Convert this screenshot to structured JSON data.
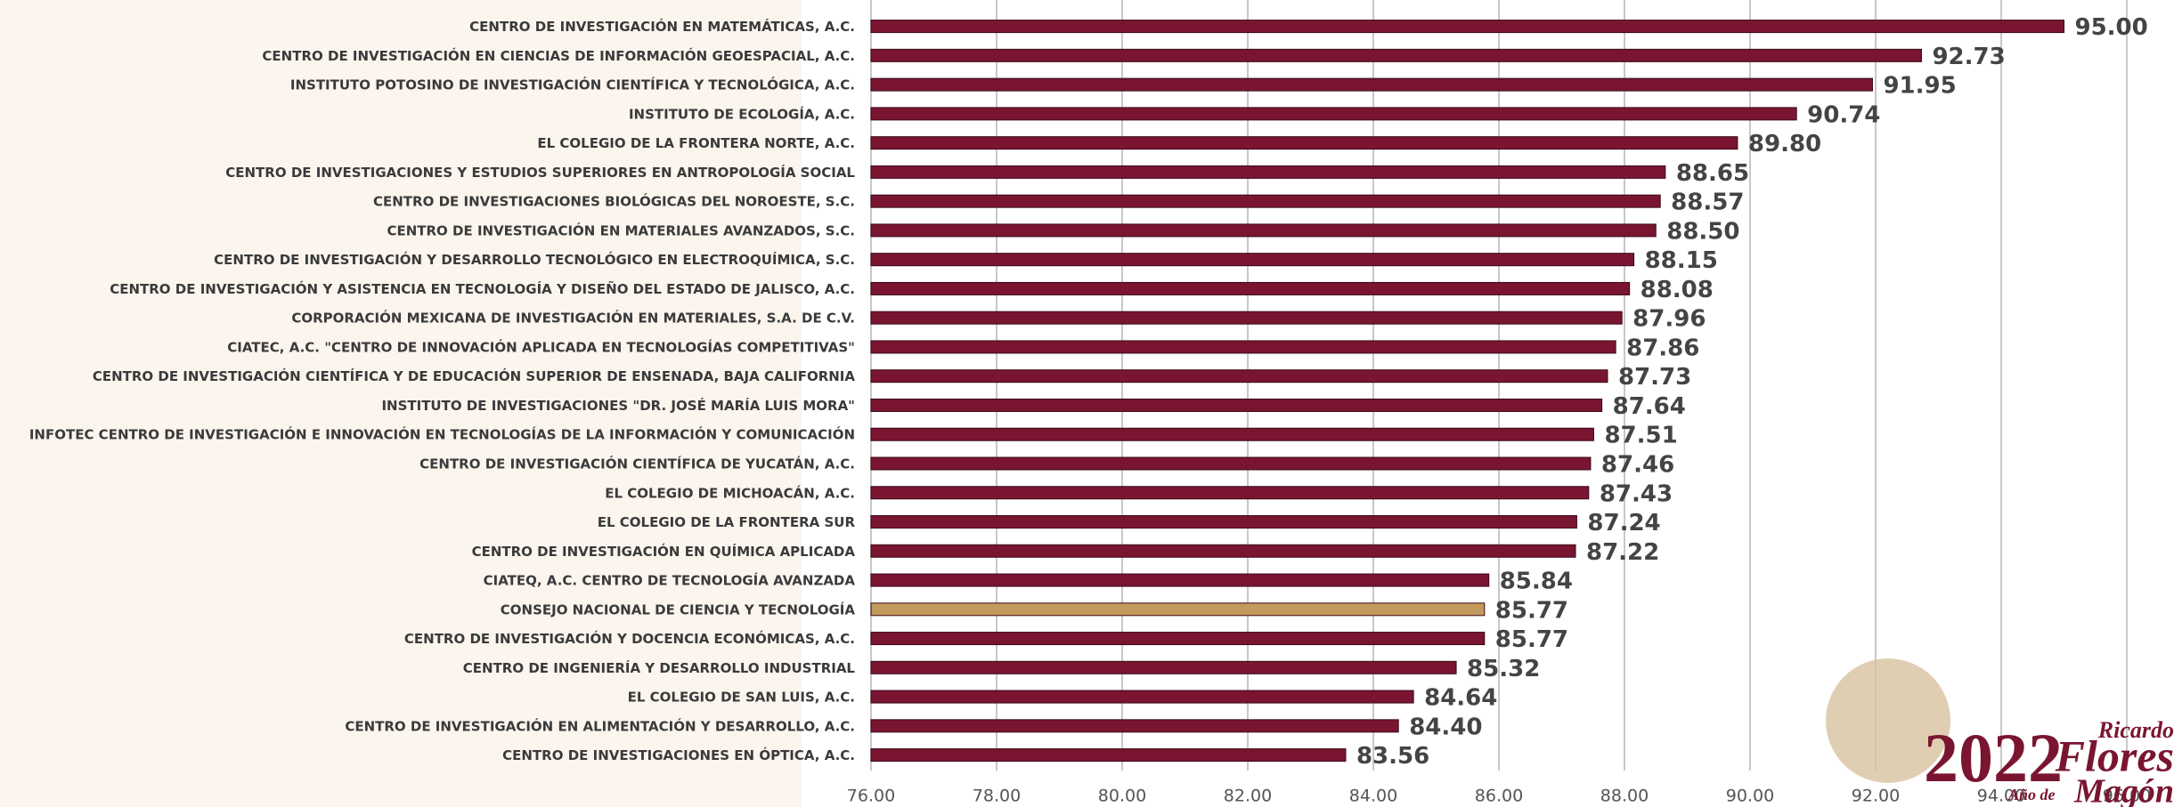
{
  "chart_data": {
    "type": "bar",
    "orientation": "horizontal",
    "categories": [
      "CENTRO DE INVESTIGACIÓN EN MATEMÁTICAS, A.C.",
      "CENTRO DE INVESTIGACIÓN EN CIENCIAS DE INFORMACIÓN GEOESPACIAL, A.C.",
      "INSTITUTO POTOSINO DE INVESTIGACIÓN CIENTÍFICA Y TECNOLÓGICA, A.C.",
      "INSTITUTO DE ECOLOGÍA, A.C.",
      "EL COLEGIO DE LA FRONTERA NORTE, A.C.",
      "CENTRO DE INVESTIGACIONES Y ESTUDIOS SUPERIORES EN ANTROPOLOGÍA SOCIAL",
      "CENTRO DE INVESTIGACIONES BIOLÓGICAS DEL NOROESTE, S.C.",
      "CENTRO DE INVESTIGACIÓN EN MATERIALES AVANZADOS, S.C.",
      "CENTRO DE INVESTIGACIÓN Y DESARROLLO TECNOLÓGICO EN ELECTROQUÍMICA, S.C.",
      "CENTRO DE INVESTIGACIÓN Y ASISTENCIA EN TECNOLOGÍA Y DISEÑO DEL ESTADO DE JALISCO, A.C.",
      "CORPORACIÓN MEXICANA DE INVESTIGACIÓN EN MATERIALES, S.A. DE C.V.",
      "CIATEC, A.C. \"CENTRO DE INNOVACIÓN APLICADA EN TECNOLOGÍAS COMPETITIVAS\"",
      "CENTRO DE INVESTIGACIÓN CIENTÍFICA Y DE EDUCACIÓN SUPERIOR DE ENSENADA, BAJA CALIFORNIA",
      "INSTITUTO DE INVESTIGACIONES \"DR. JOSÉ MARÍA LUIS MORA\"",
      "INFOTEC CENTRO DE INVESTIGACIÓN E INNOVACIÓN EN TECNOLOGÍAS DE LA INFORMACIÓN Y COMUNICACIÓN",
      "CENTRO DE INVESTIGACIÓN CIENTÍFICA DE YUCATÁN, A.C.",
      "EL COLEGIO DE MICHOACÁN, A.C.",
      "EL COLEGIO DE LA FRONTERA SUR",
      "CENTRO DE INVESTIGACIÓN EN QUÍMICA APLICADA",
      "CIATEQ, A.C. CENTRO DE TECNOLOGÍA AVANZADA",
      "CONSEJO NACIONAL DE CIENCIA Y TECNOLOGÍA",
      "CENTRO DE INVESTIGACIÓN Y DOCENCIA ECONÓMICAS, A.C.",
      "CENTRO DE INGENIERÍA Y DESARROLLO INDUSTRIAL",
      "EL COLEGIO DE SAN LUIS, A.C.",
      "CENTRO DE INVESTIGACIÓN EN ALIMENTACIÓN Y DESARROLLO, A.C.",
      "CENTRO DE INVESTIGACIONES EN ÓPTICA, A.C."
    ],
    "values": [
      95,
      92.73,
      91.95,
      90.74,
      89.8,
      88.65,
      88.57,
      88.5,
      88.15,
      88.08,
      87.96,
      87.86,
      87.73,
      87.64,
      87.51,
      87.46,
      87.43,
      87.24,
      87.22,
      85.84,
      85.77,
      85.77,
      85.32,
      84.64,
      84.4,
      83.56
    ],
    "value_labels": [
      "95.00",
      "92.73",
      "91.95",
      "90.74",
      "89.80",
      "88.65",
      "88.57",
      "88.50",
      "88.15",
      "88.08",
      "87.96",
      "87.86",
      "87.73",
      "87.64",
      "87.51",
      "87.46",
      "87.43",
      "87.24",
      "87.22",
      "85.84",
      "85.77",
      "85.77",
      "85.32",
      "84.64",
      "84.40",
      "83.56"
    ],
    "colors": [
      "#7a1531",
      "#7a1531",
      "#7a1531",
      "#7a1531",
      "#7a1531",
      "#7a1531",
      "#7a1531",
      "#7a1531",
      "#7a1531",
      "#7a1531",
      "#7a1531",
      "#7a1531",
      "#7a1531",
      "#7a1531",
      "#7a1531",
      "#7a1531",
      "#7a1531",
      "#7a1531",
      "#7a1531",
      "#7a1531",
      "#c39a5e",
      "#7a1531",
      "#7a1531",
      "#7a1531",
      "#7a1531",
      "#7a1531"
    ],
    "xlim": [
      76,
      96
    ],
    "xticks": [
      {
        "value": 76,
        "label": "76.00"
      },
      {
        "value": 78,
        "label": "78.00"
      },
      {
        "value": 80,
        "label": "80.00"
      },
      {
        "value": 82,
        "label": "82.00"
      },
      {
        "value": 84,
        "label": "84.00"
      },
      {
        "value": 86,
        "label": "86.00"
      },
      {
        "value": 88,
        "label": "88.00"
      },
      {
        "value": 90,
        "label": "90.00"
      },
      {
        "value": 92,
        "label": "92.00"
      },
      {
        "value": 94,
        "label": "94.00"
      },
      {
        "value": 96,
        "label": "96.00"
      }
    ],
    "grid": true
  },
  "logo": {
    "year": "2022",
    "text": "Año de",
    "name1": "Ricardo",
    "name2": "Flores",
    "name3": "Magón"
  }
}
